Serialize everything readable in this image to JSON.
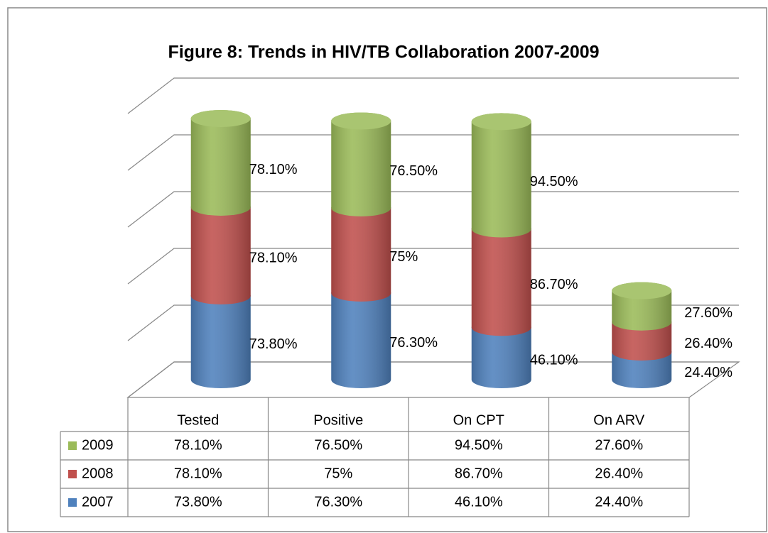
{
  "chart_data": {
    "type": "bar3d-stacked",
    "title": "Figure 8:  Trends in HIV/TB Collaboration  2007-2009",
    "categories": [
      "Tested",
      "Positive",
      "On CPT",
      "On ARV"
    ],
    "series": [
      {
        "name": "2007",
        "color": "#4f81bd",
        "values": [
          73.8,
          76.3,
          46.1,
          24.4
        ],
        "value_labels": [
          "73.80%",
          "76.30%",
          "46.10%",
          "24.40%"
        ]
      },
      {
        "name": "2008",
        "color": "#c0504d",
        "values": [
          78.1,
          75,
          86.7,
          26.4
        ],
        "value_labels": [
          "78.10%",
          "75%",
          "86.70%",
          "26.40%"
        ]
      },
      {
        "name": "2009",
        "color": "#9bbb59",
        "values": [
          78.1,
          76.5,
          94.5,
          27.6
        ],
        "value_labels": [
          "78.10%",
          "76.50%",
          "94.50%",
          "27.60%"
        ]
      }
    ],
    "ylim": [
      0,
      250
    ],
    "yticks": [
      0,
      50,
      100,
      150,
      200,
      250
    ],
    "grid": true
  }
}
